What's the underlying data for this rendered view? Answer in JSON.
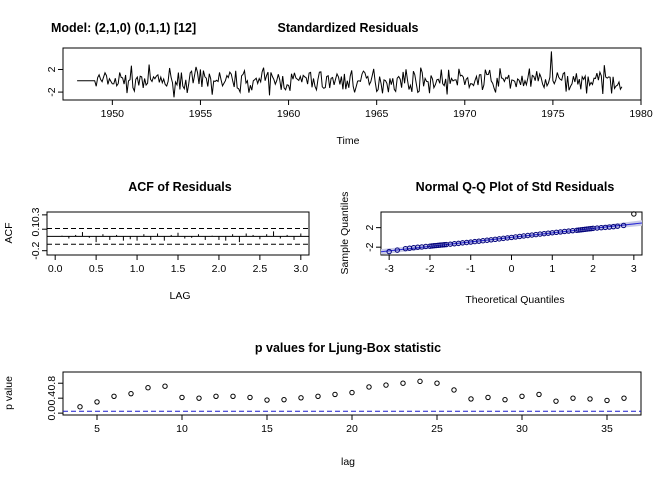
{
  "figure": {
    "model_label": "Model: (2,1,0) (0,1,1) [12]"
  },
  "chart_data": [
    {
      "id": "residuals",
      "type": "line",
      "title": "Standardized Residuals",
      "xlabel": "Time",
      "ylabel": "",
      "xlim": [
        1947.2,
        1980.0
      ],
      "ylim": [
        -3.4,
        5.8
      ],
      "xticks": [
        1950,
        1955,
        1960,
        1965,
        1970,
        1975,
        1980
      ],
      "yticks": [
        -2,
        2
      ],
      "start": 1948.0,
      "step": 0.08333,
      "flat_until": 1949.0,
      "end": 1978.92,
      "spike": {
        "x": 1974.92,
        "y": 5.2
      },
      "spread": 1.0,
      "color": "#000000"
    },
    {
      "id": "acf",
      "type": "bar",
      "title": "ACF of Residuals",
      "xlabel": "LAG",
      "ylabel": "ACF",
      "xlim": [
        -0.1,
        3.1
      ],
      "ylim": [
        -0.26,
        0.34
      ],
      "xticks": [
        "0.0",
        "0.5",
        "1.0",
        "1.5",
        "2.0",
        "2.5",
        "3.0"
      ],
      "yticks": [
        "-0.2",
        "0.1",
        "0.3"
      ],
      "conf_limit": 0.11,
      "lags": [
        0.083,
        0.167,
        0.25,
        0.333,
        0.417,
        0.5,
        0.583,
        0.667,
        0.75,
        0.833,
        0.917,
        1.0,
        1.083,
        1.167,
        1.25,
        1.333,
        1.417,
        1.5,
        1.583,
        1.667,
        1.75,
        1.833,
        1.917,
        2.0,
        2.083,
        2.167,
        2.25,
        2.333,
        2.417,
        2.5,
        2.583,
        2.667,
        2.75,
        2.833,
        2.917,
        3.0
      ],
      "values": [
        0.01,
        -0.03,
        0.02,
        0.06,
        -0.02,
        -0.08,
        0.03,
        -0.05,
        0.02,
        -0.06,
        -0.04,
        -0.06,
        0.03,
        -0.05,
        0.04,
        -0.06,
        0.02,
        0.05,
        -0.03,
        -0.02,
        0.03,
        -0.05,
        0.01,
        -0.05,
        -0.06,
        0.03,
        -0.08,
        0.04,
        0.02,
        -0.04,
        0.03,
        0.07,
        -0.03,
        0.02,
        -0.05,
        0.04
      ]
    },
    {
      "id": "qq",
      "type": "scatter",
      "title": "Normal Q-Q Plot of Std Residuals",
      "xlabel": "Theoretical Quantiles",
      "ylabel": "Sample Quantiles",
      "xlim": [
        -3.2,
        3.2
      ],
      "ylim": [
        -3.6,
        5.2
      ],
      "xticks": [
        -3,
        -2,
        -1,
        0,
        1,
        2,
        3
      ],
      "yticks": [
        -2,
        2
      ],
      "points": [
        [
          -3.0,
          -2.9
        ],
        [
          -2.8,
          -2.6
        ],
        [
          -2.6,
          -2.3
        ],
        [
          -2.5,
          -2.2
        ],
        [
          -2.4,
          -2.1
        ],
        [
          -2.3,
          -2.0
        ],
        [
          -2.2,
          -1.95
        ],
        [
          -2.1,
          -1.85
        ],
        [
          -2.0,
          -1.8
        ],
        [
          -1.95,
          -1.75
        ],
        [
          -1.9,
          -1.7
        ],
        [
          -1.85,
          -1.66
        ],
        [
          -1.8,
          -1.62
        ],
        [
          -1.75,
          -1.58
        ],
        [
          -1.7,
          -1.54
        ],
        [
          -1.65,
          -1.5
        ],
        [
          -1.6,
          -1.46
        ],
        [
          -1.5,
          -1.38
        ],
        [
          -1.4,
          -1.3
        ],
        [
          -1.3,
          -1.22
        ],
        [
          -1.2,
          -1.12
        ],
        [
          -1.1,
          -1.04
        ],
        [
          -1.0,
          -0.95
        ],
        [
          -0.9,
          -0.86
        ],
        [
          -0.8,
          -0.77
        ],
        [
          -0.7,
          -0.68
        ],
        [
          -0.6,
          -0.58
        ],
        [
          -0.5,
          -0.49
        ],
        [
          -0.4,
          -0.39
        ],
        [
          -0.3,
          -0.3
        ],
        [
          -0.2,
          -0.2
        ],
        [
          -0.1,
          -0.1
        ],
        [
          0.0,
          0.0
        ],
        [
          0.1,
          0.1
        ],
        [
          0.2,
          0.2
        ],
        [
          0.3,
          0.3
        ],
        [
          0.4,
          0.39
        ],
        [
          0.5,
          0.49
        ],
        [
          0.6,
          0.58
        ],
        [
          0.7,
          0.68
        ],
        [
          0.8,
          0.77
        ],
        [
          0.9,
          0.86
        ],
        [
          1.0,
          0.95
        ],
        [
          1.1,
          1.04
        ],
        [
          1.2,
          1.12
        ],
        [
          1.3,
          1.22
        ],
        [
          1.4,
          1.3
        ],
        [
          1.5,
          1.38
        ],
        [
          1.6,
          1.46
        ],
        [
          1.65,
          1.5
        ],
        [
          1.7,
          1.55
        ],
        [
          1.75,
          1.6
        ],
        [
          1.8,
          1.65
        ],
        [
          1.85,
          1.7
        ],
        [
          1.9,
          1.75
        ],
        [
          1.95,
          1.8
        ],
        [
          2.0,
          1.85
        ],
        [
          2.1,
          1.92
        ],
        [
          2.2,
          1.98
        ],
        [
          2.3,
          2.05
        ],
        [
          2.4,
          2.12
        ],
        [
          2.5,
          2.2
        ],
        [
          2.6,
          2.3
        ],
        [
          2.75,
          2.45
        ],
        [
          3.0,
          4.8
        ]
      ],
      "ref_line": {
        "slope": 0.92,
        "intercept": 0.0
      },
      "band": 0.35,
      "point_color": "#00007a",
      "band_color": "#c9cbe6"
    },
    {
      "id": "ljungbox",
      "type": "scatter",
      "title": "p values for Ljung-Box statistic",
      "xlabel": "lag",
      "ylabel": "p value",
      "xlim": [
        3.0,
        37.0
      ],
      "ylim": [
        -0.05,
        1.1
      ],
      "xticks": [
        5,
        10,
        15,
        20,
        25,
        30,
        35
      ],
      "yticks": [
        "0.0",
        "0.4",
        "0.8"
      ],
      "threshold": 0.05,
      "x": [
        4,
        5,
        6,
        7,
        8,
        9,
        10,
        11,
        12,
        13,
        14,
        15,
        16,
        17,
        18,
        19,
        20,
        21,
        22,
        23,
        24,
        25,
        26,
        27,
        28,
        29,
        30,
        31,
        32,
        33,
        34,
        35,
        36
      ],
      "values": [
        0.17,
        0.3,
        0.45,
        0.52,
        0.68,
        0.72,
        0.42,
        0.4,
        0.45,
        0.45,
        0.42,
        0.35,
        0.36,
        0.41,
        0.45,
        0.5,
        0.55,
        0.7,
        0.75,
        0.8,
        0.85,
        0.8,
        0.62,
        0.38,
        0.42,
        0.36,
        0.45,
        0.5,
        0.32,
        0.4,
        0.38,
        0.34,
        0.4
      ]
    }
  ]
}
